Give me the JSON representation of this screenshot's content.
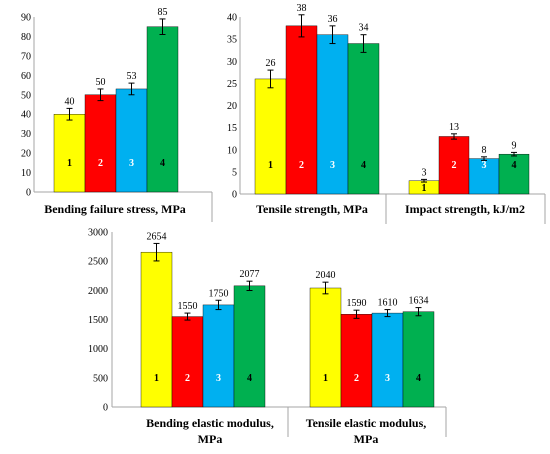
{
  "colors": {
    "bar_1": "#ffff00",
    "bar_2": "#ff0000",
    "bar_3": "#00b0f0",
    "bar_4": "#00b050",
    "axis": "#a6a6a6"
  },
  "chart_data": [
    {
      "type": "bar",
      "categories": [
        "1",
        "2",
        "3",
        "4"
      ],
      "values": [
        40,
        50,
        53,
        85
      ],
      "errors": [
        3,
        3,
        3,
        4
      ],
      "data_labels": [
        "40",
        "50",
        "53",
        "85"
      ],
      "xlabel": "Bending failure stress, MPa",
      "ylim": [
        0,
        90
      ],
      "yticks": [
        "0",
        "10",
        "20",
        "30",
        "40",
        "50",
        "60",
        "70",
        "80",
        "90"
      ]
    },
    {
      "type": "bar",
      "categories": [
        "1",
        "2",
        "3",
        "4"
      ],
      "values": [
        26,
        38,
        36,
        34
      ],
      "errors": [
        2,
        2.5,
        2,
        2
      ],
      "data_labels": [
        "26",
        "38",
        "36",
        "34"
      ],
      "xlabel": "Tensile strength, MPa",
      "ylim": [
        0,
        40
      ],
      "yticks": [
        "0",
        "5",
        "10",
        "15",
        "20",
        "25",
        "30",
        "35",
        "40"
      ]
    },
    {
      "type": "bar",
      "categories": [
        "1",
        "2",
        "3",
        "4"
      ],
      "values": [
        3,
        13,
        8,
        9
      ],
      "errors": [
        0.3,
        0.6,
        0.4,
        0.4
      ],
      "data_labels": [
        "3",
        "13",
        "8",
        "9"
      ],
      "xlabel": "Impact strength, kJ/m2",
      "ylim": [
        0,
        40
      ]
    },
    {
      "type": "bar",
      "categories": [
        "1",
        "2",
        "3",
        "4"
      ],
      "values": [
        2654,
        1550,
        1750,
        2077
      ],
      "errors": [
        150,
        60,
        80,
        80
      ],
      "data_labels": [
        "2654",
        "1550",
        "1750",
        "2077"
      ],
      "xlabel_lines": [
        "Bending elastic modulus,",
        "MPa"
      ],
      "ylim": [
        0,
        3000
      ],
      "yticks": [
        "0",
        "500",
        "1000",
        "1500",
        "2000",
        "2500",
        "3000"
      ]
    },
    {
      "type": "bar",
      "categories": [
        "1",
        "2",
        "3",
        "4"
      ],
      "values": [
        2040,
        1590,
        1610,
        1634
      ],
      "errors": [
        100,
        70,
        60,
        70
      ],
      "data_labels": [
        "2040",
        "1590",
        "1610",
        "1634"
      ],
      "xlabel_lines": [
        "Tensile elastic modulus,",
        "MPa"
      ],
      "ylim": [
        0,
        3000
      ]
    }
  ]
}
